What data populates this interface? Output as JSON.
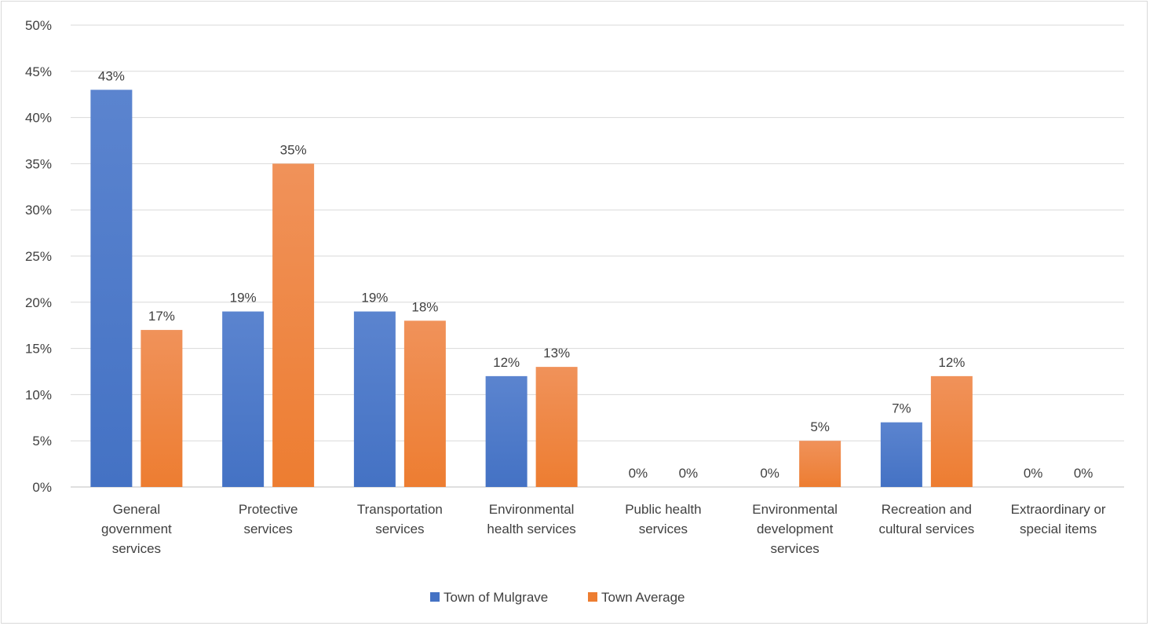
{
  "chart_data": {
    "type": "bar",
    "categories": [
      [
        "General",
        "government",
        "services"
      ],
      [
        "Protective",
        "services"
      ],
      [
        "Transportation",
        "services"
      ],
      [
        "Environmental",
        "health services"
      ],
      [
        "Public health",
        "services"
      ],
      [
        "Environmental",
        "development",
        "services"
      ],
      [
        "Recreation and",
        "cultural services"
      ],
      [
        "Extraordinary or",
        "special items"
      ]
    ],
    "series": [
      {
        "name": "Town of Mulgrave",
        "values": [
          43,
          19,
          19,
          12,
          0,
          0,
          7,
          0
        ],
        "color": "#4472c4",
        "color_top": "#5b84cf"
      },
      {
        "name": "Town Average",
        "values": [
          17,
          35,
          18,
          13,
          0,
          5,
          12,
          0
        ],
        "color": "#ed7d31",
        "color_top": "#f0925a"
      }
    ],
    "data_labels": [
      [
        "43%",
        "19%",
        "19%",
        "12%",
        "0%",
        "0%",
        "7%",
        "0%"
      ],
      [
        "17%",
        "35%",
        "18%",
        "13%",
        "0%",
        "5%",
        "12%",
        "0%"
      ]
    ],
    "ylim": [
      0,
      50
    ],
    "ytick_step": 5,
    "ytick_labels": [
      "0%",
      "5%",
      "10%",
      "15%",
      "20%",
      "25%",
      "30%",
      "35%",
      "40%",
      "45%",
      "50%"
    ],
    "grid": true,
    "legend_position": "bottom",
    "title": "",
    "xlabel": "",
    "ylabel": ""
  }
}
